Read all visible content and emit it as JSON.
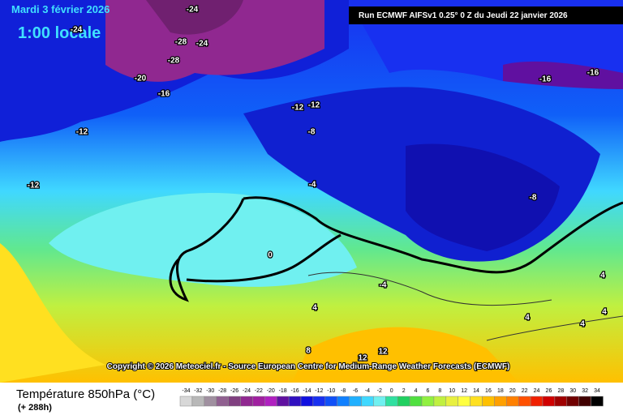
{
  "header": {
    "date": "Mardi 3 février 2026",
    "time": "1:00 locale",
    "run": "Run ECMWF AIFSv1 0.25° 0 Z du Jeudi 22 janvier 2026"
  },
  "map": {
    "contour_labels": [
      "-24",
      "-24",
      "-28",
      "-24",
      "-28",
      "-20",
      "-16",
      "-12",
      "-12",
      "-16",
      "-16",
      "-12",
      "-8",
      "-12",
      "-4",
      "-8",
      "0",
      "-4",
      "4",
      "4",
      "4",
      "4",
      "4",
      "8",
      "12",
      "12"
    ],
    "copyright": "Copyright © 2026 Meteociel.fr - Source European Centre for Medium-Range Weather Forecasts (ECMWF)"
  },
  "footer": {
    "title": "Température 850hPa (°C)",
    "lead": "(+ 288h)"
  },
  "legend": {
    "labels": [
      -34,
      -32,
      -30,
      -28,
      -26,
      -24,
      -22,
      -20,
      -18,
      -16,
      -14,
      -12,
      -10,
      -8,
      -6,
      -4,
      -2,
      0,
      2,
      4,
      6,
      8,
      10,
      12,
      14,
      16,
      18,
      20,
      22,
      24,
      26,
      28,
      30,
      32,
      34
    ],
    "colors": [
      "#d8d8d8",
      "#b8b8b8",
      "#a090a0",
      "#906090",
      "#804080",
      "#902890",
      "#a020a0",
      "#b020c0",
      "#6010a0",
      "#3010c0",
      "#1010e0",
      "#1830f0",
      "#1050f8",
      "#1080ff",
      "#20b0ff",
      "#40d8ff",
      "#70f0f0",
      "#30e0a0",
      "#20d060",
      "#50e040",
      "#90f040",
      "#c0f040",
      "#e8f040",
      "#ffff40",
      "#ffe020",
      "#ffc000",
      "#ffa000",
      "#ff8000",
      "#ff5000",
      "#f02000",
      "#d00000",
      "#a00000",
      "#700000",
      "#400000",
      "#000000"
    ]
  }
}
